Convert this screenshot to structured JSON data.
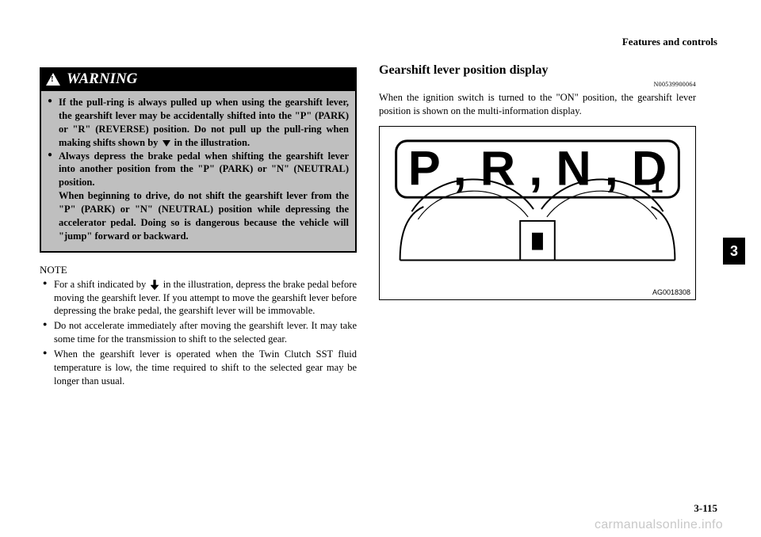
{
  "header": {
    "chapter": "Features and controls"
  },
  "left": {
    "warning_label": "WARNING",
    "warning_items": [
      "If the pull-ring is always pulled up when using the gearshift lever, the gearshift lever may be accidentally shifted into the \"P\" (PARK) or \"R\" (REVERSE) position. Do not pull up the pull-ring when making shifts shown by  in the illustration.",
      "Always depress the brake pedal when shifting the gearshift lever into another position from the \"P\" (PARK) or \"N\" (NEUTRAL) position.\nWhen beginning to drive, do not shift the gearshift lever from the \"P\" (PARK) or \"N\" (NEUTRAL) position while depressing the accelerator pedal. Doing so is dangerous because the vehicle will \"jump\" forward or backward."
    ],
    "note_label": "NOTE",
    "notes": [
      "For a shift indicated by  in the illustration, depress the brake pedal before moving the gearshift lever. If you attempt to move the gearshift lever before depressing the brake pedal, the gearshift lever will be immovable.",
      "Do not accelerate immediately after moving the gearshift lever. It may take some time for the transmission to shift to the selected gear.",
      "When the gearshift lever is operated when the Twin Clutch SST fluid temperature is low, the time required to shift to the selected gear may be longer than usual."
    ]
  },
  "right": {
    "title": "Gearshift lever position display",
    "ref": "N00539900064",
    "body": "When the ignition switch is turned to the \"ON\" position, the gearshift lever position is shown on the multi-information display.",
    "gears": [
      "P",
      "R",
      "N",
      "D"
    ],
    "gear_sub": "1",
    "illus_id": "AG0018308"
  },
  "tab": "3",
  "page_num": "3-115",
  "watermark": "carmanualsonline.info"
}
